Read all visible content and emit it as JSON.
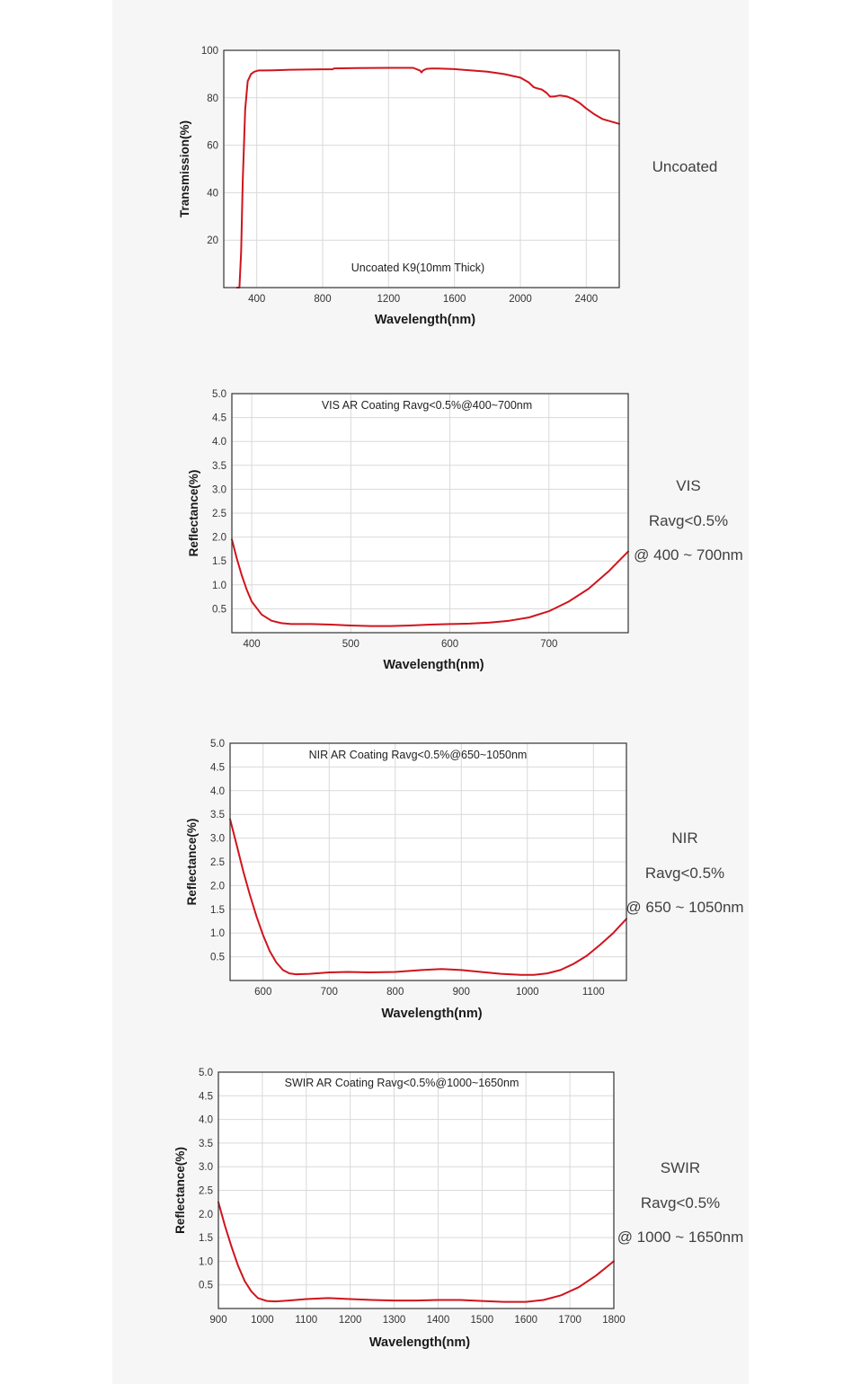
{
  "colors": {
    "curve": "#d0141c",
    "grid": "#d9d9d9",
    "frame": "#333333",
    "panel": "#f6f6f6"
  },
  "chart_data": [
    {
      "type": "line",
      "title": "Uncoated K9(10mm Thick)",
      "xlabel": "Wavelength(nm)",
      "ylabel": "Transmission(%)",
      "xlim": [
        200,
        2600
      ],
      "ylim": [
        0,
        100
      ],
      "xticks": [
        400,
        800,
        1200,
        1600,
        2000,
        2400
      ],
      "yticks": [
        20,
        40,
        60,
        80,
        100
      ],
      "grid": true,
      "series": [
        {
          "x": [
            280,
            295,
            305,
            315,
            330,
            345,
            365,
            385,
            410,
            450,
            500,
            600,
            800,
            860,
            870,
            1000,
            1200,
            1350,
            1390,
            1400,
            1410,
            1430,
            1460,
            1500,
            1600,
            1800,
            1900,
            2000,
            2050,
            2080,
            2100,
            2130,
            2160,
            2180,
            2210,
            2240,
            2280,
            2320,
            2360,
            2400,
            2450,
            2500,
            2550,
            2600
          ],
          "y": [
            0,
            0,
            15,
            45,
            75,
            87,
            90,
            91,
            91.5,
            91.5,
            91.6,
            91.8,
            92,
            92,
            92.4,
            92.5,
            92.6,
            92.6,
            91.5,
            90.7,
            91.5,
            92.2,
            92.3,
            92.3,
            92.1,
            91,
            90,
            88.5,
            86.5,
            84.5,
            84,
            83.5,
            82,
            80.5,
            80.6,
            81,
            80.6,
            79.5,
            77.8,
            75.5,
            73,
            71,
            70,
            69
          ]
        }
      ]
    },
    {
      "type": "line",
      "title": "VIS AR Coating Ravg<0.5%@400~700nm",
      "xlabel": "Wavelength(nm)",
      "ylabel": "Reflectance(%)",
      "xlim": [
        380,
        780
      ],
      "ylim": [
        0,
        5
      ],
      "xticks": [
        400,
        500,
        600,
        700
      ],
      "yticks": [
        0.5,
        1.0,
        1.5,
        2.0,
        2.5,
        3.0,
        3.5,
        4.0,
        4.5,
        5.0
      ],
      "grid": true,
      "series": [
        {
          "x": [
            380,
            385,
            390,
            395,
            400,
            410,
            420,
            430,
            440,
            460,
            480,
            500,
            520,
            540,
            560,
            580,
            600,
            620,
            640,
            660,
            680,
            700,
            720,
            740,
            760,
            780
          ],
          "y": [
            1.95,
            1.55,
            1.2,
            0.9,
            0.65,
            0.38,
            0.25,
            0.2,
            0.18,
            0.18,
            0.17,
            0.15,
            0.14,
            0.14,
            0.15,
            0.17,
            0.18,
            0.19,
            0.21,
            0.25,
            0.32,
            0.45,
            0.65,
            0.92,
            1.28,
            1.7
          ]
        }
      ]
    },
    {
      "type": "line",
      "title": "NIR AR Coating Ravg<0.5%@650~1050nm",
      "xlabel": "Wavelength(nm)",
      "ylabel": "Reflectance(%)",
      "xlim": [
        550,
        1150
      ],
      "ylim": [
        0,
        5
      ],
      "xticks": [
        600,
        700,
        800,
        900,
        1000,
        1100
      ],
      "yticks": [
        0.5,
        1.0,
        1.5,
        2.0,
        2.5,
        3.0,
        3.5,
        4.0,
        4.5,
        5.0
      ],
      "grid": true,
      "series": [
        {
          "x": [
            550,
            560,
            570,
            580,
            590,
            600,
            610,
            620,
            630,
            640,
            650,
            670,
            700,
            730,
            760,
            800,
            840,
            870,
            900,
            930,
            960,
            990,
            1010,
            1030,
            1050,
            1070,
            1090,
            1110,
            1130,
            1150
          ],
          "y": [
            3.4,
            2.85,
            2.3,
            1.8,
            1.35,
            0.95,
            0.62,
            0.38,
            0.22,
            0.15,
            0.13,
            0.14,
            0.17,
            0.18,
            0.17,
            0.18,
            0.22,
            0.24,
            0.22,
            0.18,
            0.14,
            0.12,
            0.12,
            0.15,
            0.22,
            0.35,
            0.52,
            0.75,
            1.0,
            1.3
          ]
        }
      ]
    },
    {
      "type": "line",
      "title": "SWIR AR Coating Ravg<0.5%@1000~1650nm",
      "xlabel": "Wavelength(nm)",
      "ylabel": "Reflectance(%)",
      "xlim": [
        900,
        1800
      ],
      "ylim": [
        0,
        5
      ],
      "xticks": [
        900,
        1000,
        1100,
        1200,
        1300,
        1400,
        1500,
        1600,
        1700,
        1800
      ],
      "yticks": [
        0.5,
        1.0,
        1.5,
        2.0,
        2.5,
        3.0,
        3.5,
        4.0,
        4.5,
        5.0
      ],
      "grid": true,
      "series": [
        {
          "x": [
            900,
            915,
            930,
            945,
            960,
            975,
            990,
            1010,
            1030,
            1060,
            1100,
            1150,
            1200,
            1250,
            1300,
            1350,
            1400,
            1450,
            1500,
            1550,
            1600,
            1640,
            1680,
            1720,
            1760,
            1800
          ],
          "y": [
            2.25,
            1.75,
            1.3,
            0.9,
            0.58,
            0.36,
            0.22,
            0.16,
            0.15,
            0.17,
            0.2,
            0.22,
            0.2,
            0.18,
            0.17,
            0.17,
            0.18,
            0.18,
            0.16,
            0.14,
            0.14,
            0.18,
            0.28,
            0.45,
            0.7,
            1.0
          ]
        }
      ]
    }
  ],
  "side_labels": [
    {
      "lines": [
        "Uncoated"
      ]
    },
    {
      "lines": [
        "VIS",
        "Ravg<0.5%",
        "@ 400 ~ 700nm"
      ]
    },
    {
      "lines": [
        "NIR",
        "Ravg<0.5%",
        "@ 650 ~ 1050nm"
      ]
    },
    {
      "lines": [
        "SWIR",
        "Ravg<0.5%",
        "@ 1000 ~ 1650nm"
      ]
    }
  ]
}
